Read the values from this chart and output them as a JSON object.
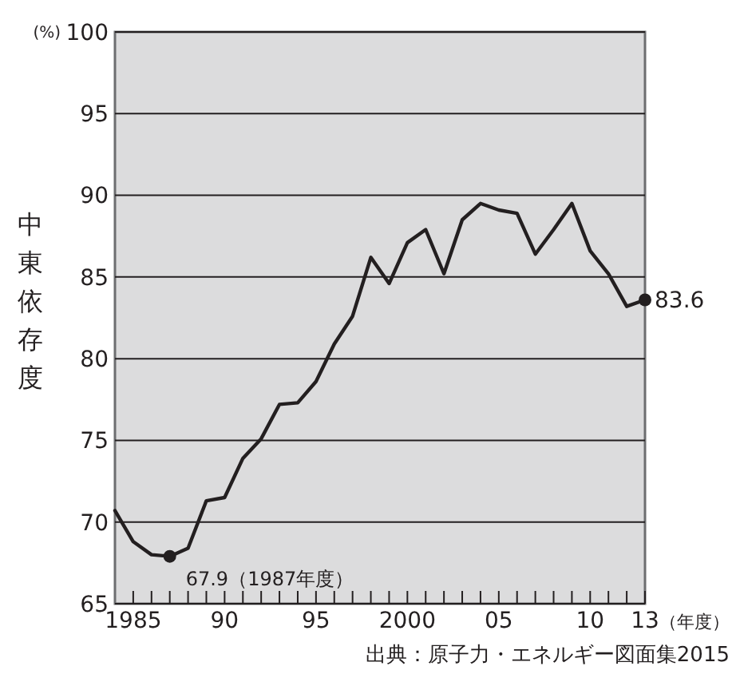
{
  "chart_data": {
    "type": "line",
    "ylabel": "中東依存度",
    "xlabel": "（年度）",
    "annotations": [
      "(%)",
      {
        "text": "67.9（1987年度）",
        "x": 1987,
        "y": 67.9
      },
      {
        "text": "83.6",
        "x": 2013,
        "y": 83.6
      },
      "出典：原子力・エネルギー図面集2015"
    ],
    "series": [
      {
        "color": "#231f20",
        "marker": "none",
        "x": [
          1984,
          1985,
          1986,
          1987,
          1988,
          1989,
          1990,
          1991,
          1992,
          1993,
          1994,
          1995,
          1996,
          1997,
          1998,
          1999,
          2000,
          2001,
          2002,
          2003,
          2004,
          2005,
          2006,
          2007,
          2008,
          2009,
          2010,
          2011,
          2012,
          2013
        ],
        "values": [
          70.7,
          68.8,
          68.0,
          67.9,
          68.4,
          71.3,
          71.5,
          73.9,
          75.1,
          77.2,
          77.3,
          78.6,
          80.9,
          82.6,
          86.2,
          84.6,
          87.1,
          87.9,
          85.2,
          88.5,
          89.5,
          89.1,
          88.9,
          86.4,
          87.9,
          89.5,
          86.6,
          85.2,
          83.2,
          83.6
        ]
      },
      {
        "type": "scatter",
        "color": "#231f20",
        "marker": "circle",
        "x": [
          1987,
          2013
        ],
        "values": [
          67.9,
          83.6
        ]
      }
    ],
    "xlim": [
      1984,
      2013
    ],
    "ylim": [
      65,
      100
    ],
    "yticks": [
      65,
      70,
      75,
      80,
      85,
      90,
      95,
      100
    ],
    "xticks": [
      {
        "value": 1985,
        "label": "1985"
      },
      {
        "value": 1986,
        "label": null
      },
      {
        "value": 1987,
        "label": null
      },
      {
        "value": 1988,
        "label": null
      },
      {
        "value": 1989,
        "label": null
      },
      {
        "value": 1990,
        "label": "90"
      },
      {
        "value": 1991,
        "label": null
      },
      {
        "value": 1992,
        "label": null
      },
      {
        "value": 1993,
        "label": null
      },
      {
        "value": 1994,
        "label": null
      },
      {
        "value": 1995,
        "label": "95"
      },
      {
        "value": 1996,
        "label": null
      },
      {
        "value": 1997,
        "label": null
      },
      {
        "value": 1998,
        "label": null
      },
      {
        "value": 1999,
        "label": null
      },
      {
        "value": 2000,
        "label": "2000"
      },
      {
        "value": 2001,
        "label": null
      },
      {
        "value": 2002,
        "label": null
      },
      {
        "value": 2003,
        "label": null
      },
      {
        "value": 2004,
        "label": null
      },
      {
        "value": 2005,
        "label": "05"
      },
      {
        "value": 2006,
        "label": null
      },
      {
        "value": 2007,
        "label": null
      },
      {
        "value": 2008,
        "label": null
      },
      {
        "value": 2009,
        "label": null
      },
      {
        "value": 2010,
        "label": "10"
      },
      {
        "value": 2011,
        "label": null
      },
      {
        "value": 2012,
        "label": null
      },
      {
        "value": 2013,
        "label": "13"
      }
    ],
    "grid": "y",
    "line_style": "solid"
  }
}
